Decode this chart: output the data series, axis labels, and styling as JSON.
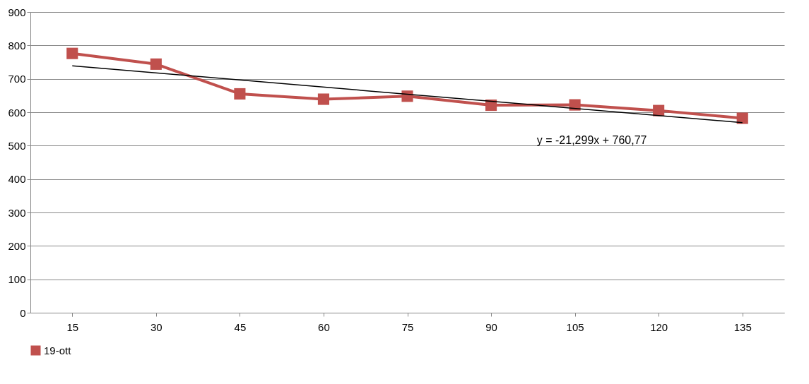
{
  "chart_data": {
    "type": "line",
    "categories": [
      "15",
      "30",
      "45",
      "60",
      "75",
      "90",
      "105",
      "120",
      "135"
    ],
    "series": [
      {
        "name": "19-ott",
        "color": "#c0504d",
        "values": [
          776,
          744,
          655,
          639,
          648,
          621,
          622,
          605,
          582
        ],
        "marker": "square"
      },
      {
        "type": "line",
        "x": [
          "15",
          "135"
        ],
        "color": "#000000",
        "values": [
          739,
          569
        ],
        "marker": "none"
      }
    ],
    "ylim": [
      0,
      900
    ],
    "yticks": [
      0,
      100,
      200,
      300,
      400,
      500,
      600,
      700,
      800,
      900
    ],
    "grid": "y",
    "legend": "bottom",
    "annotations": [
      "y = -21,299x + 760,77"
    ]
  }
}
